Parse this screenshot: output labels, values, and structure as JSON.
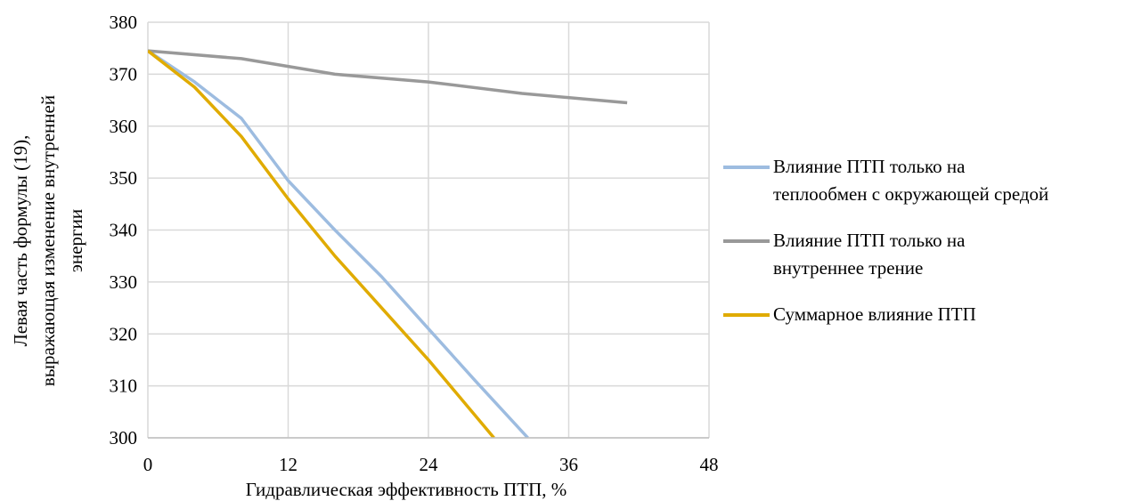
{
  "chart_data": {
    "type": "line",
    "xlabel": "Гидравлическая эффективность ПТП, %",
    "ylabel_lines": [
      "Левая часть формулы (19),",
      "выражающая изменение внутренней",
      "энергии"
    ],
    "xlim": [
      0,
      48
    ],
    "ylim": [
      300,
      380
    ],
    "xticks": [
      0,
      12,
      24,
      36,
      48
    ],
    "yticks": [
      300,
      310,
      320,
      330,
      340,
      350,
      360,
      370,
      380
    ],
    "grid": true,
    "legend_position": "right",
    "series": [
      {
        "name": "Влияние ПТП только на теплообмен с окружающей средой",
        "name_lines": [
          "Влияние ПТП только на",
          "теплообмен с окружающей средой"
        ],
        "color": "#9dbce0",
        "points": [
          [
            0,
            374.5
          ],
          [
            4,
            368.5
          ],
          [
            8,
            361.5
          ],
          [
            12,
            349.5
          ],
          [
            16,
            340
          ],
          [
            20,
            331
          ],
          [
            24,
            321
          ],
          [
            28,
            311
          ],
          [
            32.5,
            300
          ]
        ]
      },
      {
        "name": "Влияние ПТП только на внутреннее трение",
        "name_lines": [
          "Влияние ПТП только на",
          "внутреннее трение"
        ],
        "color": "#999999",
        "points": [
          [
            0,
            374.5
          ],
          [
            8,
            373
          ],
          [
            16,
            370
          ],
          [
            24,
            368.5
          ],
          [
            32,
            366.3
          ],
          [
            41,
            364.5
          ]
        ]
      },
      {
        "name": "Суммарное влияние ПТП",
        "name_lines": [
          "Суммарное влияние ПТП"
        ],
        "color": "#e0ab00",
        "points": [
          [
            0,
            374.5
          ],
          [
            4,
            367.5
          ],
          [
            8,
            358
          ],
          [
            12,
            346
          ],
          [
            16,
            335
          ],
          [
            20,
            325
          ],
          [
            24,
            315
          ],
          [
            29.6,
            300
          ]
        ]
      }
    ]
  }
}
